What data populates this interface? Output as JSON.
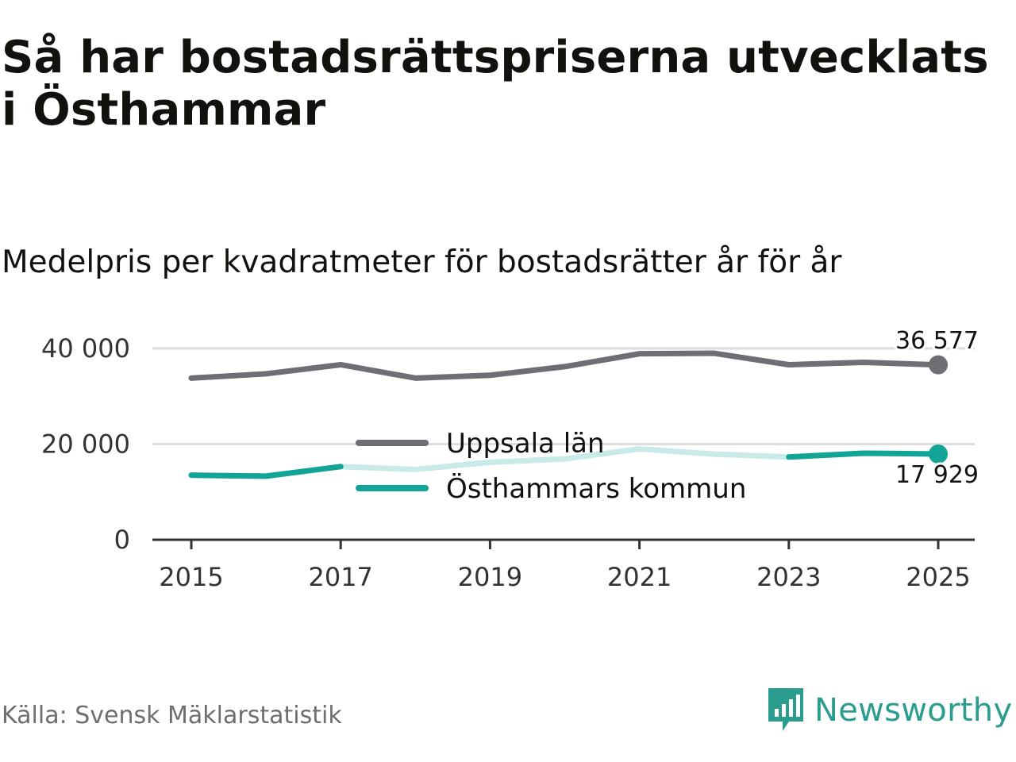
{
  "title": "Så har bostadsrättspriserna utvecklats i Östhammar",
  "subtitle": "Medelpris per kvadratmeter för bostadsrätter år för år",
  "source": "Källa: Svensk Mäklarstatistik",
  "brand": "Newsworthy",
  "chart_data": {
    "type": "line",
    "x": [
      2015,
      2016,
      2017,
      2018,
      2019,
      2020,
      2021,
      2022,
      2023,
      2024,
      2025
    ],
    "x_ticks": [
      2015,
      2017,
      2019,
      2021,
      2023,
      2025
    ],
    "x_tick_labels": [
      "2015",
      "2017",
      "2019",
      "2021",
      "2023",
      "2025"
    ],
    "y_ticks": [
      0,
      20000,
      40000
    ],
    "y_tick_labels": [
      "0",
      "20 000",
      "40 000"
    ],
    "ylim": [
      0,
      40000
    ],
    "grid": true,
    "series": [
      {
        "name": "Uppsala län",
        "color": "#6f6e74",
        "values": [
          33800,
          34700,
          36600,
          33800,
          34400,
          36200,
          38900,
          39000,
          36600,
          37100,
          36577
        ],
        "end_label": "36 577"
      },
      {
        "name": "Östhammars kommun",
        "color": "#11a497",
        "faded_color": "#c8ebe7",
        "values": [
          13500,
          13300,
          15300,
          14700,
          16200,
          16900,
          19000,
          17900,
          17300,
          18100,
          17929
        ],
        "end_label": "17 929"
      }
    ],
    "legend": "center"
  },
  "colors": {
    "grid": "#dddddd",
    "axis": "#333333",
    "brand": "#2a9d8f"
  }
}
